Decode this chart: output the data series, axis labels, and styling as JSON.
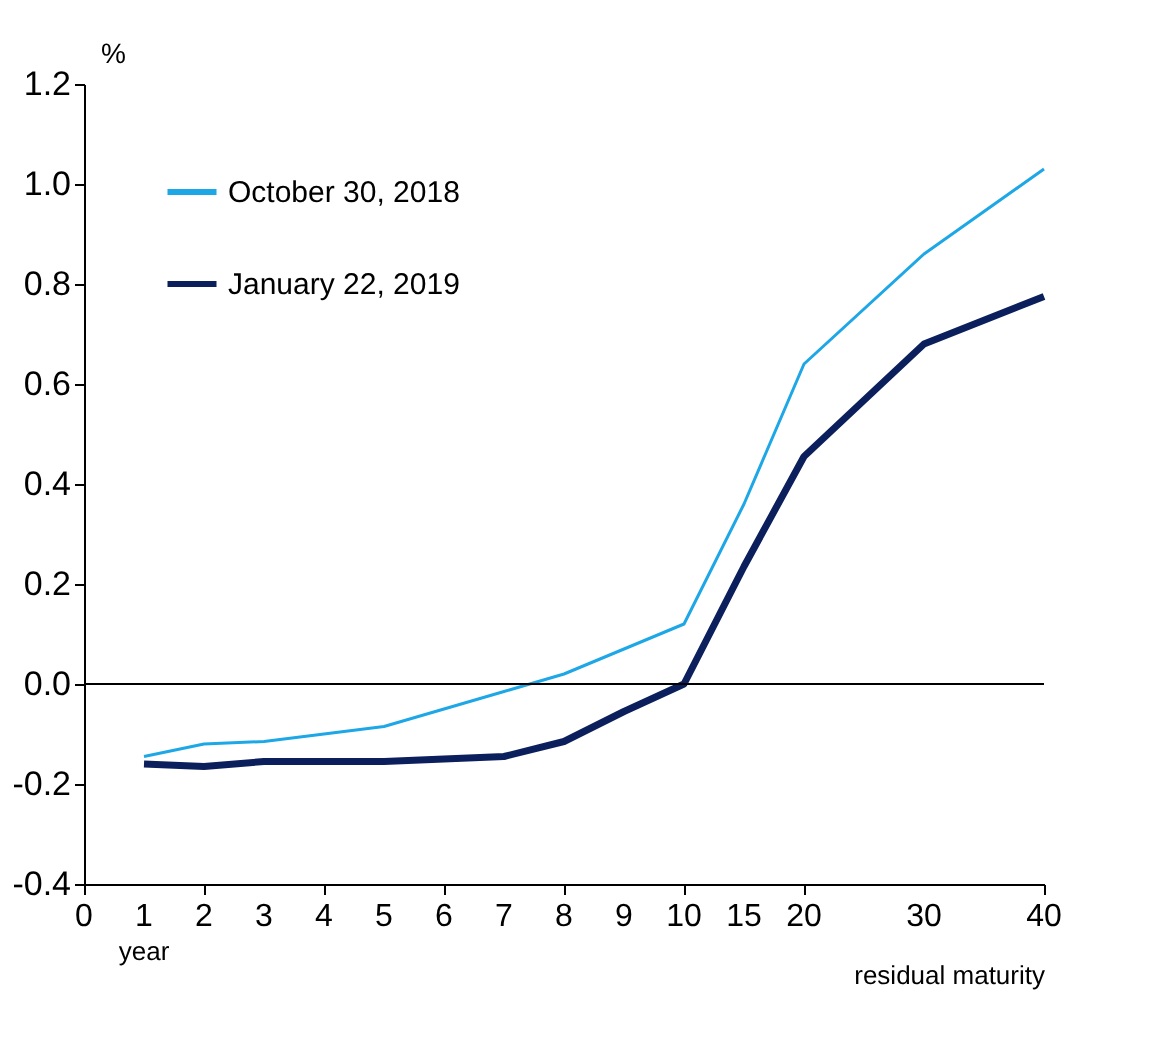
{
  "chart_data": {
    "type": "line",
    "ylabel": "%",
    "xlabel": "residual maturity",
    "categories": [
      "0",
      "1",
      "2",
      "3",
      "4",
      "5",
      "6",
      "7",
      "8",
      "9",
      "10",
      "15",
      "20",
      null,
      "30",
      null,
      "40"
    ],
    "series": [
      {
        "name": "October 30, 2018",
        "color": "#1ea7e6",
        "values": [
          null,
          -0.145,
          -0.12,
          -0.115,
          -0.1,
          -0.085,
          -0.05,
          -0.015,
          0.02,
          0.07,
          0.12,
          0.36,
          0.64,
          null,
          0.86,
          null,
          1.03
        ]
      },
      {
        "name": "January 22, 2019",
        "color": "#0b1f5c",
        "values": [
          null,
          -0.16,
          -0.165,
          -0.155,
          -0.155,
          -0.155,
          -0.15,
          -0.145,
          -0.115,
          -0.055,
          0.0,
          0.235,
          0.455,
          null,
          0.68,
          null,
          0.775
        ]
      }
    ],
    "ylim": [
      -0.4,
      1.2
    ],
    "yticks": [
      {
        "value": -0.4,
        "label": "-0.4"
      },
      {
        "value": -0.2,
        "label": "-0.2"
      },
      {
        "value": 0,
        "label": "0.0"
      },
      {
        "value": 0.2,
        "label": "0.2"
      },
      {
        "value": 0.4,
        "label": "0.4"
      },
      {
        "value": 0.6,
        "label": "0.6"
      },
      {
        "value": 0.8,
        "label": "0.8"
      },
      {
        "value": 1.0,
        "label": "1.0"
      },
      {
        "value": 1.2,
        "label": "1.2"
      }
    ],
    "ref_lines": [
      {
        "axis": "y",
        "value": 0,
        "label": null,
        "color": "#000000"
      }
    ],
    "annotations": [
      "year"
    ],
    "legend": "top left",
    "grid": false,
    "marker": "none",
    "line_style": "solid"
  }
}
